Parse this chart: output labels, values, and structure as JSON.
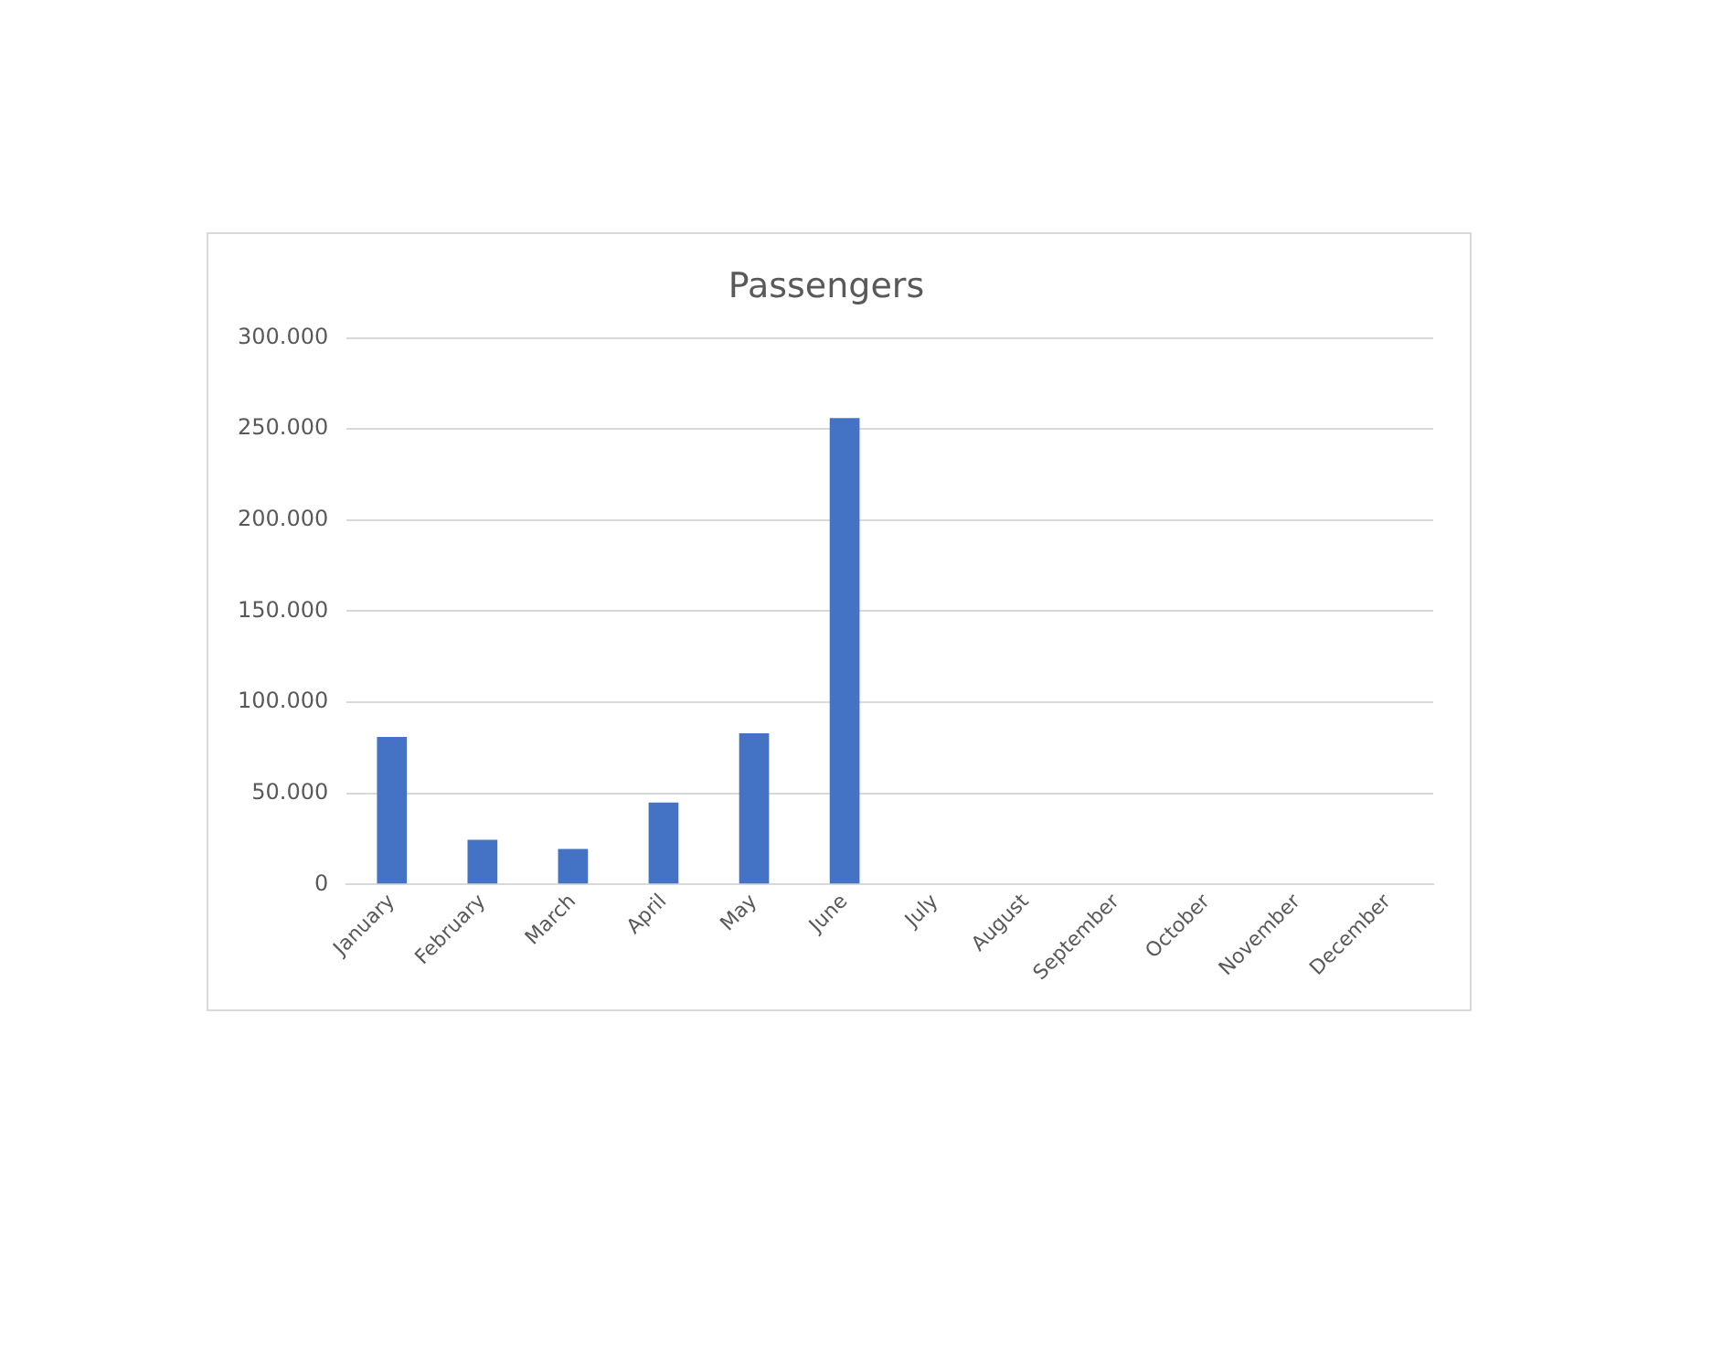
{
  "chart_data": {
    "type": "bar",
    "title": "Passengers",
    "categories": [
      "January",
      "February",
      "March",
      "April",
      "May",
      "June",
      "July",
      "August",
      "September",
      "October",
      "November",
      "December"
    ],
    "values": [
      81000,
      24500,
      19500,
      45000,
      83000,
      256000,
      null,
      null,
      null,
      null,
      null,
      null
    ],
    "color": "#4472c4",
    "ylim": [
      0,
      300000
    ],
    "yticks": [
      {
        "value": 0,
        "label": "0"
      },
      {
        "value": 50000,
        "label": "50.000"
      },
      {
        "value": 100000,
        "label": "100.000"
      },
      {
        "value": 150000,
        "label": "150.000"
      },
      {
        "value": 200000,
        "label": "200.000"
      },
      {
        "value": 250000,
        "label": "250.000"
      },
      {
        "value": 300000,
        "label": "300.000"
      }
    ],
    "grid": "y",
    "legend": false
  }
}
